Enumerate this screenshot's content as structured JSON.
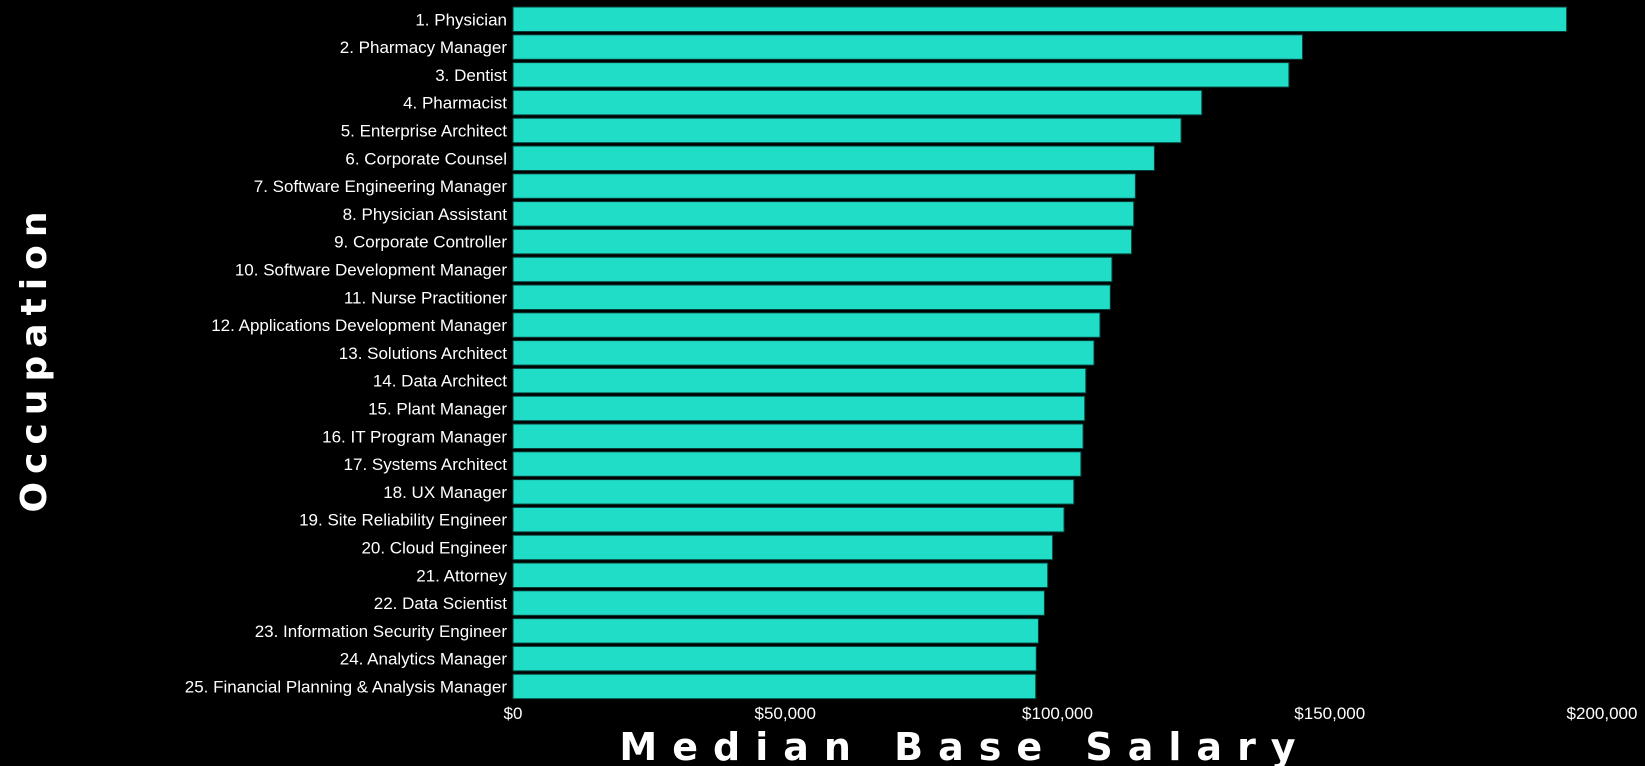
{
  "chart_data": {
    "type": "bar",
    "orientation": "horizontal",
    "categories": [
      "1. Physician",
      "2. Pharmacy Manager",
      "3. Dentist",
      "4. Pharmacist",
      "5. Enterprise Architect",
      "6. Corporate Counsel",
      "7. Software Engineering Manager",
      "8. Physician Assistant",
      "9. Corporate Controller",
      "10. Software Development Manager",
      "11. Nurse Practitioner",
      "12. Applications Development Manager",
      "13. Solutions Architect",
      "14. Data Architect",
      "15. Plant Manager",
      "16. IT Program Manager",
      "17. Systems Architect",
      "18. UX Manager",
      "19. Site Reliability Engineer",
      "20. Cloud Engineer",
      "21. Attorney",
      "22. Data Scientist",
      "23. Information Security Engineer",
      "24. Analytics Manager",
      "25. Financial Planning & Analysis Manager"
    ],
    "values": [
      193500,
      145000,
      142500,
      126500,
      122700,
      117800,
      114300,
      114000,
      113600,
      110000,
      109700,
      107800,
      106700,
      105200,
      105000,
      104700,
      104300,
      103000,
      101200,
      99100,
      98200,
      97600,
      96500,
      96100,
      96000
    ],
    "xlabel": "Median Base Salary",
    "ylabel": "Occupation",
    "xlim": [
      0,
      200000
    ],
    "xticks": [
      0,
      50000,
      100000,
      150000,
      200000
    ],
    "xtick_labels": [
      "$0",
      "$50,000",
      "$100,000",
      "$150,000",
      "$200,000"
    ],
    "grid": false,
    "colors": {
      "bar": "#20DDC8",
      "bar_edge": "#0a3f39",
      "background": "#000000",
      "text": "#FFFFFF"
    }
  }
}
